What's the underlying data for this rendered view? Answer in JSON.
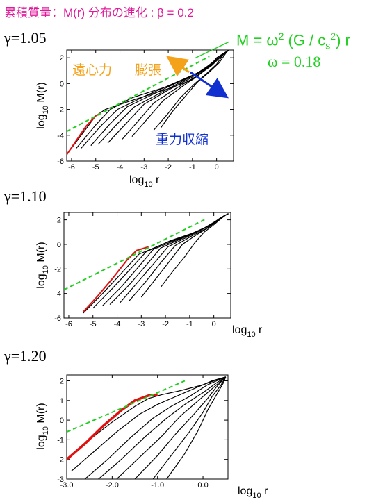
{
  "title": "累積質量：M(r) 分布の進化 : β = 0.2",
  "formula": {
    "prefix": "M = ω",
    "sup1": "2",
    "mid": " (G / c",
    "sub": "s",
    "sup2": "2",
    "suffix": ") r",
    "omega": "ω = 0.18"
  },
  "annotations": {
    "centrifugal": "遠心力",
    "expansion": "膨張",
    "collapse": "重力収縮"
  },
  "colors": {
    "title": "#e0189a",
    "reference": "#22d022",
    "centrifugal": "#f5a21b",
    "collapse": "#1030d0",
    "curve": "#000000",
    "highlight": "#e01010"
  },
  "chart_data": [
    {
      "type": "line",
      "gamma_label": "γ=1.05",
      "xlabel_main": "log",
      "xlabel_sub": "10",
      "xlabel_tail": " r",
      "ylabel_main": "log",
      "ylabel_sub": "10",
      "ylabel_tail": " M(r)",
      "xlim": [
        -6.2,
        0.7
      ],
      "ylim": [
        -6,
        2.6
      ],
      "xticks": [
        -6,
        -5,
        -4,
        -3,
        -2,
        -1,
        0
      ],
      "yticks": [
        -6,
        -4,
        -2,
        0,
        2
      ],
      "reference_line": {
        "x": [
          -6.2,
          -0.3
        ],
        "y": [
          -3.7,
          2.1
        ]
      },
      "highlight_curve": {
        "x": [
          -6.2,
          -5.8,
          -5.4,
          -5.0,
          -4.8
        ],
        "y": [
          -5.5,
          -4.4,
          -3.3,
          -2.5,
          -2.3
        ]
      },
      "series": [
        {
          "x": [
            -6.2,
            -5.6,
            -5.0,
            -4.6,
            -3.5,
            -2.0,
            -1.0,
            -0.3,
            0.0,
            0.5
          ],
          "y": [
            -5.5,
            -4.0,
            -2.5,
            -2.0,
            -1.3,
            -0.4,
            0.3,
            1.3,
            2.0,
            2.6
          ]
        },
        {
          "x": [
            -5.8,
            -5.0,
            -4.4,
            -3.5,
            -2.0,
            -1.0,
            -0.2,
            0.5
          ],
          "y": [
            -5.0,
            -3.2,
            -2.0,
            -1.1,
            -0.2,
            0.6,
            1.5,
            2.6
          ]
        },
        {
          "x": [
            -5.6,
            -4.8,
            -4.1,
            -3.0,
            -1.8,
            -0.8,
            -0.1,
            0.5
          ],
          "y": [
            -5.0,
            -3.3,
            -2.0,
            -1.0,
            0.0,
            0.8,
            1.7,
            2.6
          ]
        },
        {
          "x": [
            -5.2,
            -4.4,
            -3.7,
            -2.6,
            -1.5,
            -0.6,
            0.0,
            0.5
          ],
          "y": [
            -4.8,
            -3.1,
            -1.8,
            -0.8,
            0.2,
            1.0,
            1.9,
            2.6
          ]
        },
        {
          "x": [
            -4.9,
            -4.1,
            -3.4,
            -2.3,
            -1.3,
            -0.5,
            0.1,
            0.5
          ],
          "y": [
            -4.7,
            -3.1,
            -1.8,
            -0.7,
            0.3,
            1.1,
            2.0,
            2.6
          ]
        },
        {
          "x": [
            -4.5,
            -3.7,
            -3.0,
            -2.0,
            -1.1,
            -0.4,
            0.2,
            0.5
          ],
          "y": [
            -4.6,
            -3.0,
            -1.6,
            -0.5,
            0.4,
            1.2,
            2.1,
            2.6
          ]
        },
        {
          "x": [
            -3.9,
            -3.2,
            -2.6,
            -1.7,
            -0.9,
            -0.3,
            0.2,
            0.5
          ],
          "y": [
            -4.3,
            -2.8,
            -1.5,
            -0.4,
            0.5,
            1.3,
            2.2,
            2.6
          ]
        },
        {
          "x": [
            -3.5,
            -2.8,
            -2.2,
            -1.4,
            -0.8,
            -0.2,
            0.3,
            0.5
          ],
          "y": [
            -4.1,
            -2.6,
            -1.3,
            -0.2,
            0.6,
            1.4,
            2.3,
            2.6
          ]
        },
        {
          "x": [
            -2.6,
            -2.0,
            -1.5,
            -0.9,
            -0.4,
            0.0,
            0.3,
            0.5
          ],
          "y": [
            -3.6,
            -2.3,
            -1.1,
            0.0,
            0.8,
            1.5,
            2.3,
            2.6
          ]
        },
        {
          "x": [
            -2.3,
            -1.8,
            -1.3,
            -0.8,
            -0.3,
            0.1,
            0.4,
            0.5
          ],
          "y": [
            -3.4,
            -2.1,
            -1.0,
            0.1,
            0.9,
            1.6,
            2.4,
            2.6
          ]
        }
      ]
    },
    {
      "type": "line",
      "gamma_label": "γ=1.10",
      "xlabel_main": "log",
      "xlabel_sub": "10",
      "xlabel_tail": " r",
      "ylabel_main": "log",
      "ylabel_sub": "10",
      "ylabel_tail": " M(r)",
      "xlim": [
        -6.2,
        0.7
      ],
      "ylim": [
        -6,
        2.6
      ],
      "xticks": [
        -6,
        -5,
        -4,
        -3,
        -2,
        -1,
        0
      ],
      "yticks": [
        -6,
        -4,
        -2,
        0,
        2
      ],
      "reference_line": {
        "x": [
          -6.2,
          -0.3
        ],
        "y": [
          -3.7,
          2.1
        ]
      },
      "highlight_curve": {
        "x": [
          -5.4,
          -4.8,
          -4.2,
          -3.6,
          -3.2,
          -2.7
        ],
        "y": [
          -5.5,
          -4.2,
          -2.8,
          -1.3,
          -0.5,
          -0.2
        ]
      },
      "series": [
        {
          "x": [
            -5.4,
            -4.6,
            -3.8,
            -3.1,
            -2.0,
            -1.0,
            -0.2,
            0.3,
            0.6
          ],
          "y": [
            -5.6,
            -4.0,
            -2.3,
            -0.8,
            0.1,
            0.8,
            1.5,
            2.2,
            2.5
          ]
        },
        {
          "x": [
            -5.0,
            -4.2,
            -3.4,
            -2.8,
            -1.8,
            -0.9,
            -0.1,
            0.4,
            0.6
          ],
          "y": [
            -5.2,
            -3.6,
            -1.9,
            -0.6,
            0.3,
            0.9,
            1.6,
            2.3,
            2.5
          ]
        },
        {
          "x": [
            -4.6,
            -3.8,
            -3.1,
            -2.5,
            -1.5,
            -0.7,
            0.0,
            0.4,
            0.6
          ],
          "y": [
            -5.0,
            -3.4,
            -1.8,
            -0.4,
            0.4,
            1.0,
            1.7,
            2.3,
            2.5
          ]
        },
        {
          "x": [
            -4.3,
            -3.5,
            -2.8,
            -2.2,
            -1.3,
            -0.6,
            0.0,
            0.5,
            0.6
          ],
          "y": [
            -4.9,
            -3.3,
            -1.7,
            -0.3,
            0.5,
            1.1,
            1.8,
            2.4,
            2.5
          ]
        },
        {
          "x": [
            -3.9,
            -3.2,
            -2.5,
            -1.9,
            -1.1,
            -0.5,
            0.1,
            0.5,
            0.6
          ],
          "y": [
            -4.8,
            -3.2,
            -1.6,
            -0.2,
            0.6,
            1.2,
            1.9,
            2.4,
            2.5
          ]
        },
        {
          "x": [
            -3.5,
            -2.8,
            -2.2,
            -1.6,
            -0.9,
            -0.3,
            0.2,
            0.5,
            0.6
          ],
          "y": [
            -4.6,
            -3.0,
            -1.5,
            -0.1,
            0.7,
            1.3,
            2.0,
            2.4,
            2.5
          ]
        },
        {
          "x": [
            -3.0,
            -2.4,
            -1.8,
            -1.3,
            -0.7,
            -0.2,
            0.2,
            0.5,
            0.6
          ],
          "y": [
            -4.3,
            -2.8,
            -1.3,
            0.0,
            0.8,
            1.4,
            2.0,
            2.4,
            2.5
          ]
        },
        {
          "x": [
            -2.2,
            -1.7,
            -1.2,
            -0.8,
            -0.4,
            0.0,
            0.3,
            0.5,
            0.6
          ],
          "y": [
            -3.5,
            -2.2,
            -1.0,
            0.1,
            1.0,
            1.6,
            2.1,
            2.4,
            2.5
          ]
        }
      ]
    },
    {
      "type": "line",
      "gamma_label": "γ=1.20",
      "xlabel_main": "log",
      "xlabel_sub": "10",
      "xlabel_tail": " r",
      "ylabel_main": "log",
      "ylabel_sub": "10",
      "ylabel_tail": " M(r)",
      "xlim": [
        -3.0,
        0.55
      ],
      "ylim": [
        -3,
        2.3
      ],
      "xticks": [
        -3.0,
        -2.0,
        -1.0,
        0.0
      ],
      "xtick_labels": [
        "-3.0",
        "-2.0",
        "-1.0",
        "0.0"
      ],
      "yticks": [
        -3,
        -2,
        -1,
        0,
        1,
        2
      ],
      "reference_line": {
        "x": [
          -3.0,
          -0.4
        ],
        "y": [
          -0.6,
          2.0
        ]
      },
      "highlight_curve": {
        "x": [
          -3.0,
          -2.6,
          -2.2,
          -1.8,
          -1.5,
          -1.2,
          -1.0
        ],
        "y": [
          -2.0,
          -1.2,
          -0.3,
          0.5,
          1.0,
          1.25,
          1.3
        ]
      },
      "series": [
        {
          "x": [
            -3.0,
            -2.5,
            -2.0,
            -1.5,
            -1.2,
            -0.9,
            -0.5,
            0.0,
            0.3,
            0.5
          ],
          "y": [
            -2.0,
            -1.0,
            -0.1,
            0.7,
            1.1,
            1.3,
            1.5,
            1.8,
            2.05,
            2.2
          ]
        },
        {
          "x": [
            -2.9,
            -2.4,
            -1.9,
            -1.4,
            -1.0,
            -0.6,
            -0.2,
            0.2,
            0.5
          ],
          "y": [
            -2.6,
            -1.6,
            -0.6,
            0.3,
            0.8,
            1.2,
            1.6,
            2.0,
            2.2
          ]
        },
        {
          "x": [
            -2.6,
            -2.1,
            -1.6,
            -1.1,
            -0.7,
            -0.3,
            0.1,
            0.5
          ],
          "y": [
            -3.0,
            -2.0,
            -0.9,
            0.1,
            0.7,
            1.2,
            1.8,
            2.2
          ]
        },
        {
          "x": [
            -2.3,
            -1.8,
            -1.3,
            -0.8,
            -0.4,
            0.0,
            0.3,
            0.5
          ],
          "y": [
            -3.0,
            -2.0,
            -0.9,
            0.1,
            0.8,
            1.4,
            1.9,
            2.2
          ]
        },
        {
          "x": [
            -1.9,
            -1.4,
            -0.9,
            -0.5,
            -0.1,
            0.2,
            0.5
          ],
          "y": [
            -3.0,
            -1.9,
            -0.8,
            0.2,
            1.0,
            1.6,
            2.2
          ]
        },
        {
          "x": [
            -1.5,
            -1.0,
            -0.6,
            -0.2,
            0.1,
            0.3,
            0.5
          ],
          "y": [
            -3.0,
            -1.8,
            -0.7,
            0.3,
            1.1,
            1.7,
            2.2
          ]
        },
        {
          "x": [
            -1.1,
            -0.7,
            -0.3,
            0.0,
            0.2,
            0.4,
            0.5
          ],
          "y": [
            -3.0,
            -1.8,
            -0.6,
            0.4,
            1.2,
            1.8,
            2.2
          ]
        },
        {
          "x": [
            -0.8,
            -0.4,
            -0.1,
            0.1,
            0.3,
            0.45,
            0.5
          ],
          "y": [
            -3.0,
            -1.7,
            -0.5,
            0.5,
            1.3,
            1.9,
            2.2
          ]
        }
      ]
    }
  ]
}
